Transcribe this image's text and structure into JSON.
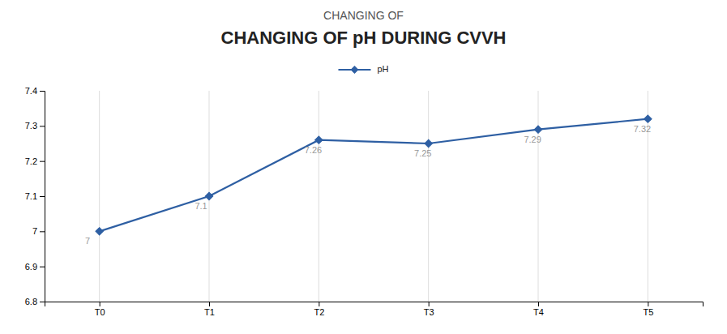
{
  "chart_data": {
    "type": "line",
    "title": "CHANGING OF pH DURING CVVH",
    "subtitle": "CHANGING OF",
    "categories": [
      "T0",
      "T1",
      "T2",
      "T3",
      "T4",
      "T5"
    ],
    "series": [
      {
        "name": "pH",
        "color": "#2E5FA3",
        "marker": "diamond",
        "values": [
          7,
          7.1,
          7.26,
          7.25,
          7.29,
          7.32
        ]
      }
    ],
    "ylim": [
      6.8,
      7.4
    ],
    "yticks": [
      6.8,
      6.9,
      7,
      7.1,
      7.2,
      7.3,
      7.4
    ],
    "grid": true,
    "legend": "top",
    "data_labels": true
  }
}
